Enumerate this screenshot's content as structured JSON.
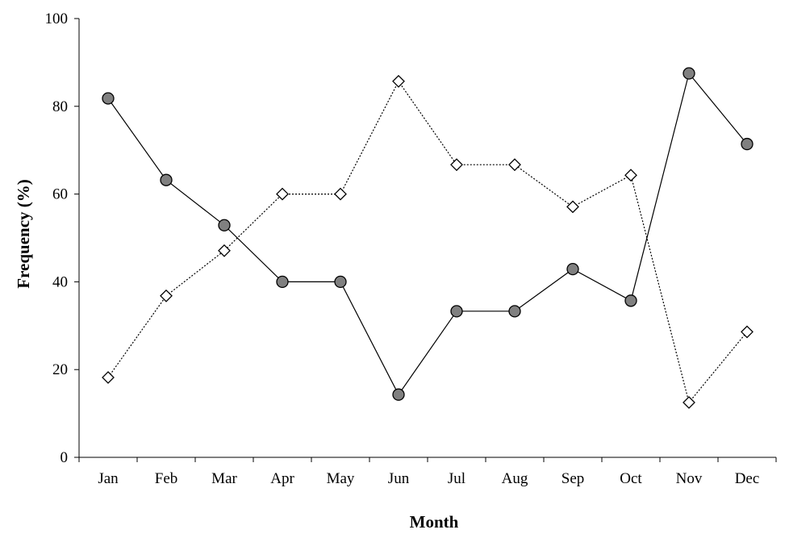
{
  "chart_data": {
    "type": "line",
    "title": "",
    "xlabel": "Month",
    "ylabel": "Frequency (%)",
    "ylim": [
      0,
      100
    ],
    "yticks": [
      0,
      20,
      40,
      60,
      80,
      100
    ],
    "categories": [
      "Jan",
      "Feb",
      "Mar",
      "Apr",
      "May",
      "Jun",
      "Jul",
      "Aug",
      "Sep",
      "Oct",
      "Nov",
      "Dec"
    ],
    "grid": false,
    "legend": "none",
    "series": [
      {
        "values": [
          81.8,
          63.2,
          52.9,
          40.0,
          40.0,
          14.3,
          33.3,
          33.3,
          42.9,
          35.7,
          87.5,
          71.4
        ],
        "marker": "circle",
        "marker_fill": "#808080",
        "line_style": "solid",
        "color": "#000000"
      },
      {
        "values": [
          18.2,
          36.8,
          47.1,
          60.0,
          60.0,
          85.7,
          66.7,
          66.7,
          57.1,
          64.3,
          12.5,
          28.6
        ],
        "marker": "diamond",
        "marker_fill": "#ffffff",
        "line_style": "dotted",
        "color": "#000000"
      }
    ]
  }
}
